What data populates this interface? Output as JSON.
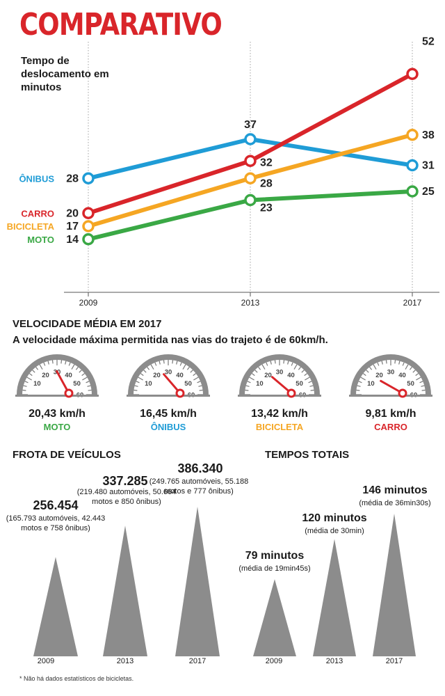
{
  "header": {
    "title": "COMPARATIVO",
    "subtitle": "Tempo de deslocamento em minutos"
  },
  "colors": {
    "onibus": "#1f9cd6",
    "carro": "#d9252a",
    "bicicleta": "#f5a623",
    "moto": "#3aa845",
    "gray": "#8c8c8c"
  },
  "chart_data": [
    {
      "type": "line",
      "title": "COMPARATIVO",
      "subtitle": "Tempo de deslocamento em minutos",
      "x": [
        "2009",
        "2013",
        "2017"
      ],
      "series": [
        {
          "name": "ÔNIBUS",
          "color": "#1f9cd6",
          "values": [
            28,
            37,
            31
          ]
        },
        {
          "name": "CARRO",
          "color": "#d9252a",
          "values": [
            20,
            32,
            52
          ]
        },
        {
          "name": "BICICLETA",
          "color": "#f5a623",
          "values": [
            17,
            28,
            38
          ]
        },
        {
          "name": "MOTO",
          "color": "#3aa845",
          "values": [
            14,
            23,
            25
          ]
        }
      ],
      "ylim": [
        5,
        55
      ],
      "grid": false
    },
    {
      "type": "bar",
      "title": "FROTA DE VEÍCULOS",
      "categories": [
        "2009",
        "2013",
        "2017"
      ],
      "values": [
        256454,
        337285,
        386340
      ],
      "value_labels": [
        "256.454",
        "337.285",
        "386.340"
      ],
      "details": [
        "(165.793 automóveis, 42.443 motos e 758 ônibus)",
        "(219.480 automóveis, 50.664 motos e 850 ônibus)",
        "(249.765 automóveis, 55.188 motos e 777 ônibus)"
      ]
    },
    {
      "type": "bar",
      "title": "TEMPOS TOTAIS",
      "categories": [
        "2009",
        "2013",
        "2017"
      ],
      "values": [
        79,
        120,
        146
      ],
      "value_labels": [
        "79 minutos",
        "120 minutos",
        "146 minutos"
      ],
      "details": [
        "(média de 19min45s)",
        "(média de 30min)",
        "(média de 36min30s)"
      ]
    }
  ],
  "speed": {
    "title": "VELOCIDADE MÉDIA EM 2017",
    "note": "A velocidade máxima permitida nas vias do trajeto é de 60km/h.",
    "scale_ticks": [
      "10",
      "20",
      "30",
      "40",
      "50",
      "60"
    ],
    "max": 60,
    "gauges": [
      {
        "value": 20.43,
        "value_label": "20,43 km/h",
        "label": "MOTO",
        "color": "#3aa845"
      },
      {
        "value": 16.45,
        "value_label": "16,45 km/h",
        "label": "ÔNIBUS",
        "color": "#1f9cd6"
      },
      {
        "value": 13.42,
        "value_label": "13,42 km/h",
        "label": "BICICLETA",
        "color": "#f5a623"
      },
      {
        "value": 9.81,
        "value_label": "9,81 km/h",
        "label": "CARRO",
        "color": "#d9252a"
      }
    ]
  },
  "fleet": {
    "title": "FROTA DE VEÍCULOS",
    "footnote": "* Não há dados estatísticos de bicicletas."
  },
  "times": {
    "title": "TEMPOS TOTAIS"
  }
}
